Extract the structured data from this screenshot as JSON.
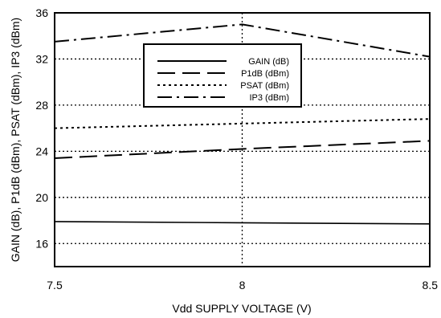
{
  "chart_data": {
    "type": "line",
    "title": "",
    "xlabel": "Vdd SUPPLY  VOLTAGE (V)",
    "ylabel": "GAIN (dB), P1dB (dBm), PSAT (dBm), IP3 (dBm)",
    "x": [
      7.5,
      8,
      8.5
    ],
    "xticks": [
      "7.5",
      "8",
      "8.5"
    ],
    "xlim": [
      7.5,
      8.5
    ],
    "yticks": [
      "16",
      "20",
      "24",
      "28",
      "32",
      "36"
    ],
    "ylim": [
      14,
      36
    ],
    "grid": "dotted",
    "legend_position": "top-center",
    "series": [
      {
        "name": "GAIN (dB)",
        "values": [
          17.9,
          17.8,
          17.7
        ],
        "style": "solid"
      },
      {
        "name": "P1dB (dBm)",
        "values": [
          23.4,
          24.2,
          24.9
        ],
        "style": "long-dash"
      },
      {
        "name": "PSAT (dBm)",
        "values": [
          26.0,
          26.4,
          26.8
        ],
        "style": "dotted"
      },
      {
        "name": "IP3 (dBm)",
        "values": [
          33.5,
          35.0,
          32.2
        ],
        "style": "dash-dot"
      }
    ],
    "colors": {
      "lines": "#000000",
      "background": "#ffffff"
    }
  }
}
